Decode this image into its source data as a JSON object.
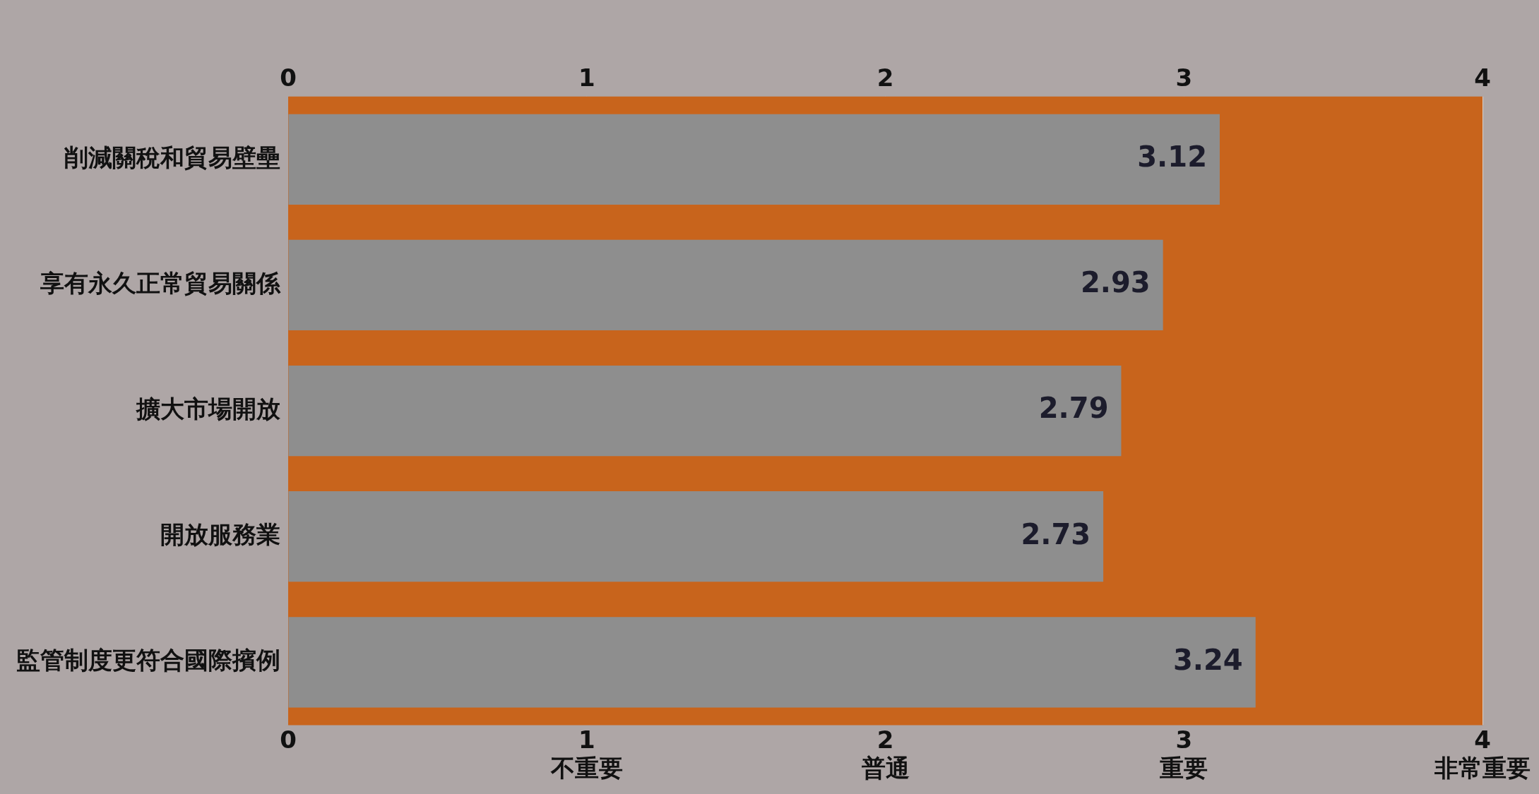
{
  "chart_data": {
    "type": "bar",
    "orientation": "horizontal",
    "categories": [
      "削減關稅和貿易壁壘",
      "享有永久正常貿易關係",
      "擴大市場開放",
      "開放服務業",
      "監管制度更符合國際擯例"
    ],
    "values": [
      3.12,
      2.93,
      2.79,
      2.73,
      3.24
    ],
    "color": "#8e8e8e",
    "data_labels": true,
    "xlim": [
      0,
      4
    ],
    "xticks": [
      0,
      {
        "value": 1,
        "label": "1\n不重要"
      },
      {
        "value": 2,
        "label": "2\n普通"
      },
      {
        "value": 3,
        "label": "3\n重要"
      },
      {
        "value": 4,
        "label": "4\n非常重要"
      }
    ],
    "x2lim": [
      0,
      4
    ],
    "x2ticks": [
      0,
      1,
      2,
      3,
      4
    ],
    "grid": "x",
    "legend": false,
    "bands": [
      {
        "axis": "x",
        "from": 0,
        "to": 4,
        "color": "#c8641c"
      }
    ]
  }
}
